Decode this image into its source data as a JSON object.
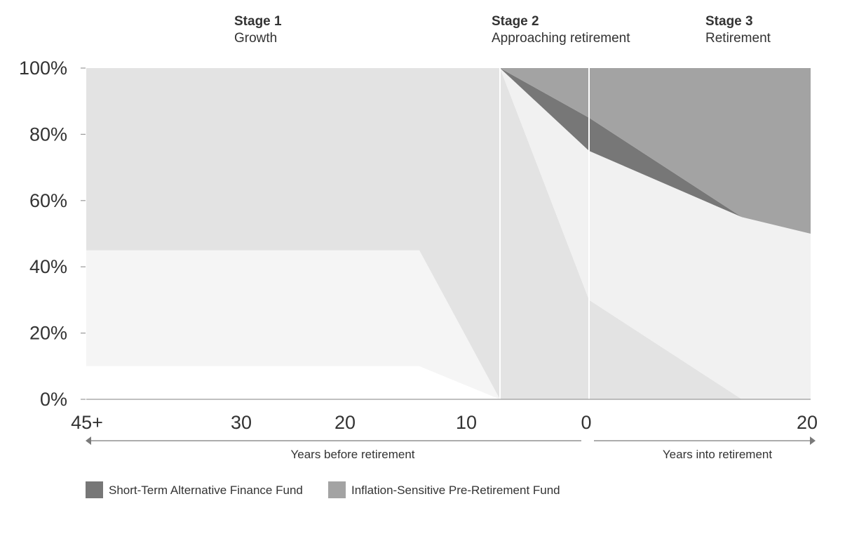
{
  "chart_data": {
    "type": "area",
    "stages": [
      {
        "title": "Stage 1",
        "subtitle": "Growth"
      },
      {
        "title": "Stage 2",
        "subtitle": "Approaching retirement"
      },
      {
        "title": "Stage 3",
        "subtitle": "Retirement"
      }
    ],
    "y_ticks": [
      "0%",
      "20%",
      "40%",
      "60%",
      "80%",
      "100%"
    ],
    "x_ticks": [
      "45+",
      "30",
      "20",
      "10",
      "0",
      "20"
    ],
    "ylim": [
      0,
      100
    ],
    "x_captions": {
      "before": "Years before retirement",
      "after": "Years into retirement"
    },
    "stage_boundaries": [
      7,
      0
    ],
    "x_points": [
      45,
      14,
      7,
      0,
      -14,
      -20
    ],
    "series": [
      {
        "values": [
          10,
          10,
          0,
          0,
          0,
          0
        ],
        "color": "#ffffff"
      },
      {
        "values": [
          35,
          35,
          0,
          0,
          0,
          0
        ],
        "color": "#f5f5f5"
      },
      {
        "values": [
          55,
          55,
          100,
          30,
          0,
          0
        ],
        "color": "#e3e3e3"
      },
      {
        "values": [
          0,
          0,
          0,
          45,
          55,
          50
        ],
        "color": "#f1f1f1"
      },
      {
        "name": "Short-Term Alternative Finance Fund",
        "values": [
          0,
          0,
          0,
          10,
          0,
          0
        ],
        "color": "#777777"
      },
      {
        "name": "Inflation-Sensitive Pre-Retirement Fund",
        "values": [
          0,
          0,
          0,
          15,
          45,
          50
        ],
        "color": "#a3a3a3"
      }
    ],
    "legend": [
      {
        "label": "Short-Term Alternative Finance Fund",
        "color": "#777777"
      },
      {
        "label": "Inflation-Sensitive Pre-Retirement Fund",
        "color": "#a3a3a3"
      }
    ],
    "legend_position": "bottom-left",
    "grid": false
  }
}
